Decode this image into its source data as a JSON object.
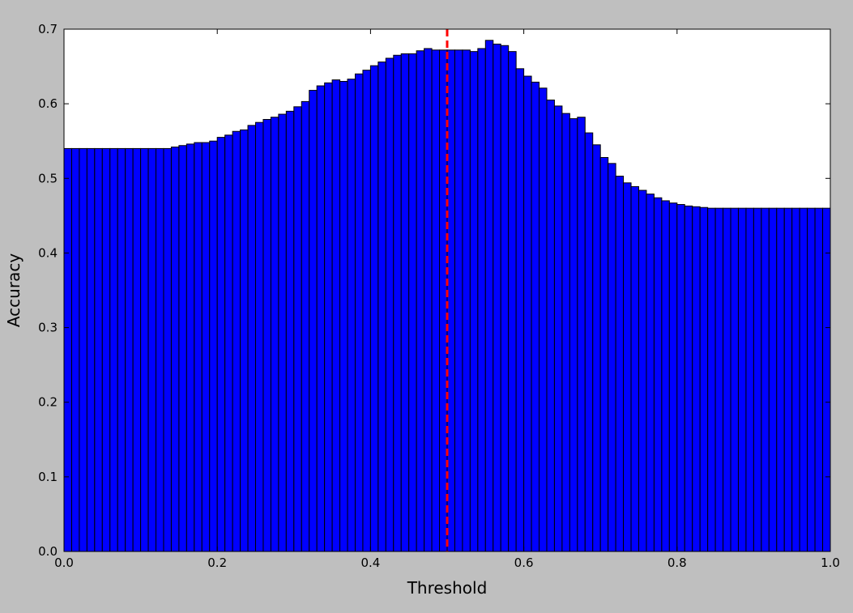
{
  "chart_data": {
    "type": "bar",
    "title": "",
    "xlabel": "Threshold",
    "ylabel": "Accuracy",
    "xlim": [
      0.0,
      1.0
    ],
    "ylim": [
      0.0,
      0.7
    ],
    "xticks": [
      "0.0",
      "0.2",
      "0.4",
      "0.6",
      "0.8",
      "1.0"
    ],
    "yticks": [
      "0.0",
      "0.1",
      "0.2",
      "0.3",
      "0.4",
      "0.5",
      "0.6",
      "0.7"
    ],
    "bar_color": "#0000ff",
    "bar_edge_color": "#000000",
    "reference_line": {
      "x": 0.5,
      "color": "#ff0000",
      "style": "dashed"
    },
    "x": [
      0.0,
      0.01,
      0.02,
      0.03,
      0.04,
      0.05,
      0.06,
      0.07,
      0.08,
      0.09,
      0.1,
      0.11,
      0.12,
      0.13,
      0.14,
      0.15,
      0.16,
      0.17,
      0.18,
      0.19,
      0.2,
      0.21,
      0.22,
      0.23,
      0.24,
      0.25,
      0.26,
      0.27,
      0.28,
      0.29,
      0.3,
      0.31,
      0.32,
      0.33,
      0.34,
      0.35,
      0.36,
      0.37,
      0.38,
      0.39,
      0.4,
      0.41,
      0.42,
      0.43,
      0.44,
      0.45,
      0.46,
      0.47,
      0.48,
      0.49,
      0.5,
      0.51,
      0.52,
      0.53,
      0.54,
      0.55,
      0.56,
      0.57,
      0.58,
      0.59,
      0.6,
      0.61,
      0.62,
      0.63,
      0.64,
      0.65,
      0.66,
      0.67,
      0.68,
      0.69,
      0.7,
      0.71,
      0.72,
      0.73,
      0.74,
      0.75,
      0.76,
      0.77,
      0.78,
      0.79,
      0.8,
      0.81,
      0.82,
      0.83,
      0.84,
      0.85,
      0.86,
      0.87,
      0.88,
      0.89,
      0.9,
      0.91,
      0.92,
      0.93,
      0.94,
      0.95,
      0.96,
      0.97,
      0.98,
      0.99
    ],
    "values": [
      0.54,
      0.54,
      0.54,
      0.54,
      0.54,
      0.54,
      0.54,
      0.54,
      0.54,
      0.54,
      0.54,
      0.54,
      0.54,
      0.54,
      0.542,
      0.544,
      0.546,
      0.548,
      0.548,
      0.55,
      0.555,
      0.558,
      0.563,
      0.565,
      0.571,
      0.575,
      0.579,
      0.582,
      0.586,
      0.59,
      0.596,
      0.603,
      0.618,
      0.624,
      0.628,
      0.632,
      0.63,
      0.633,
      0.64,
      0.645,
      0.651,
      0.656,
      0.661,
      0.665,
      0.667,
      0.667,
      0.671,
      0.674,
      0.672,
      0.672,
      0.672,
      0.672,
      0.672,
      0.67,
      0.674,
      0.685,
      0.68,
      0.678,
      0.67,
      0.647,
      0.637,
      0.629,
      0.621,
      0.605,
      0.597,
      0.587,
      0.58,
      0.582,
      0.561,
      0.545,
      0.528,
      0.52,
      0.503,
      0.494,
      0.489,
      0.484,
      0.479,
      0.474,
      0.47,
      0.467,
      0.465,
      0.463,
      0.462,
      0.461,
      0.46,
      0.46,
      0.46,
      0.46,
      0.46,
      0.46,
      0.46,
      0.46,
      0.46,
      0.46,
      0.46,
      0.46,
      0.46,
      0.46,
      0.46,
      0.46
    ]
  }
}
